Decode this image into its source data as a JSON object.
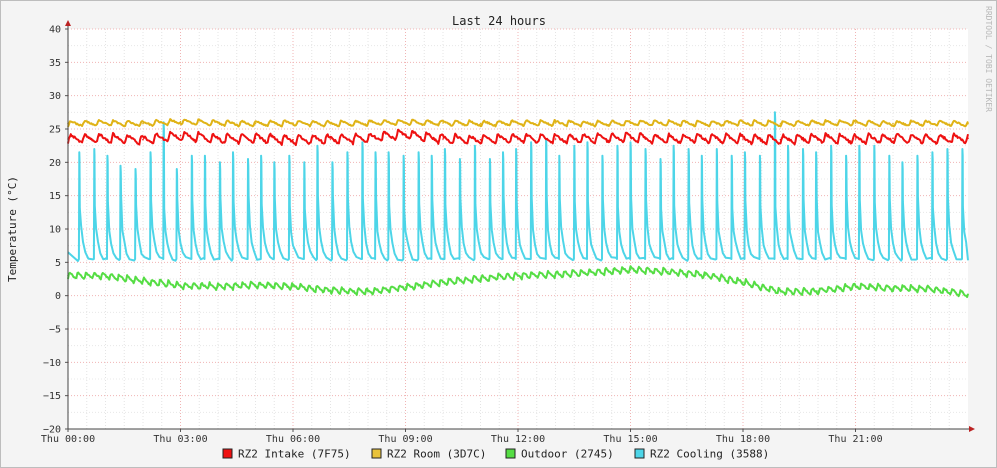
{
  "watermark": "RRDTOOL / TOBI OETIKER",
  "chart_data": {
    "type": "line",
    "title": "Last 24 hours",
    "ylabel": "Temperature (°C)",
    "xlabel": "",
    "ylim": [
      -20,
      40
    ],
    "y_ticks": [
      -20,
      -15,
      -10,
      -5,
      0,
      5,
      10,
      15,
      20,
      25,
      30,
      35,
      40
    ],
    "x_range_hours": [
      0,
      24
    ],
    "x_ticks": [
      {
        "hour": 0,
        "label": "Thu 00:00"
      },
      {
        "hour": 3,
        "label": "Thu 03:00"
      },
      {
        "hour": 6,
        "label": "Thu 06:00"
      },
      {
        "hour": 9,
        "label": "Thu 09:00"
      },
      {
        "hour": 12,
        "label": "Thu 12:00"
      },
      {
        "hour": 15,
        "label": "Thu 15:00"
      },
      {
        "hour": 18,
        "label": "Thu 18:00"
      },
      {
        "hour": 21,
        "label": "Thu 21:00"
      }
    ],
    "grid": true,
    "legend_position": "bottom",
    "series": [
      {
        "name": "RZ2 Intake (7F75)",
        "color": "#ee1111",
        "marker": "#ee1111",
        "hours": [
          0,
          1,
          2,
          3,
          4,
          5,
          6,
          7,
          8,
          9,
          10,
          11,
          12,
          13,
          14,
          15,
          16,
          17,
          18,
          19,
          20,
          21,
          22,
          23,
          24
        ],
        "values": [
          23.5,
          23.6,
          23.4,
          24.0,
          23.5,
          23.6,
          23.4,
          23.5,
          23.6,
          24.2,
          23.5,
          23.4,
          23.6,
          23.5,
          23.6,
          23.7,
          23.5,
          23.6,
          23.5,
          23.4,
          23.6,
          23.5,
          23.6,
          23.5,
          23.6
        ]
      },
      {
        "name": "RZ2 Room (3D7C)",
        "color": "#e0b216",
        "marker": "#e8c23a",
        "hours": [
          0,
          1,
          2,
          3,
          4,
          5,
          6,
          7,
          8,
          9,
          10,
          11,
          12,
          13,
          14,
          15,
          16,
          17,
          18,
          19,
          20,
          21,
          22,
          23,
          24
        ],
        "values": [
          25.8,
          25.9,
          25.8,
          26.1,
          25.9,
          25.8,
          25.9,
          25.8,
          25.9,
          26.0,
          25.9,
          25.8,
          25.9,
          25.9,
          25.8,
          25.9,
          25.9,
          25.8,
          25.9,
          25.8,
          25.9,
          25.9,
          25.8,
          25.9,
          25.8
        ]
      },
      {
        "name": "Outdoor (2745)",
        "color": "#55dd44",
        "marker": "#55dd44",
        "hours": [
          0,
          1,
          2,
          3,
          4,
          5,
          6,
          7,
          8,
          9,
          10,
          11,
          12,
          13,
          14,
          15,
          16,
          17,
          18,
          19,
          20,
          21,
          22,
          23,
          24
        ],
        "values": [
          3.0,
          3.0,
          2.2,
          1.5,
          1.4,
          1.6,
          1.4,
          0.8,
          0.6,
          1.3,
          2.0,
          2.6,
          3.0,
          3.2,
          3.5,
          3.9,
          3.6,
          3.1,
          2.0,
          0.6,
          0.7,
          1.4,
          1.1,
          1.0,
          0.2
        ]
      },
      {
        "name": "RZ2 Cooling (3588)",
        "color": "#4dd5e8",
        "marker": "#4dd5e8",
        "baseline": 5.0,
        "peak_hours": [
          0.3,
          0.7,
          1.05,
          1.4,
          1.8,
          2.2,
          2.55,
          2.9,
          3.3,
          3.65,
          4.05,
          4.4,
          4.8,
          5.15,
          5.5,
          5.9,
          6.3,
          6.65,
          7.05,
          7.45,
          7.85,
          8.2,
          8.55,
          8.95,
          9.35,
          9.7,
          10.05,
          10.45,
          10.85,
          11.25,
          11.6,
          11.95,
          12.35,
          12.75,
          13.1,
          13.5,
          13.85,
          14.25,
          14.65,
          15.0,
          15.4,
          15.8,
          16.15,
          16.55,
          16.9,
          17.3,
          17.7,
          18.05,
          18.45,
          18.85,
          19.2,
          19.6,
          19.95,
          20.35,
          20.75,
          21.1,
          21.5,
          21.9,
          22.25,
          22.65,
          23.05,
          23.45,
          23.85
        ],
        "peak_values": [
          21.5,
          22.0,
          21.0,
          19.5,
          19.0,
          21.5,
          26.0,
          19.0,
          21.0,
          21.0,
          20.0,
          21.5,
          20.5,
          21.0,
          20.0,
          21.0,
          20.0,
          22.5,
          20.0,
          21.5,
          23.0,
          21.5,
          21.5,
          21.0,
          21.5,
          21.0,
          22.0,
          20.5,
          22.5,
          20.5,
          21.5,
          22.0,
          23.0,
          23.5,
          21.0,
          22.5,
          23.0,
          21.0,
          22.5,
          23.0,
          22.0,
          20.5,
          22.5,
          22.0,
          21.0,
          22.0,
          21.0,
          21.5,
          21.0,
          27.5,
          22.5,
          22.0,
          21.5,
          22.5,
          21.0,
          22.5,
          22.5,
          21.0,
          20.0,
          21.0,
          21.5,
          22.0,
          22.0
        ]
      }
    ]
  }
}
